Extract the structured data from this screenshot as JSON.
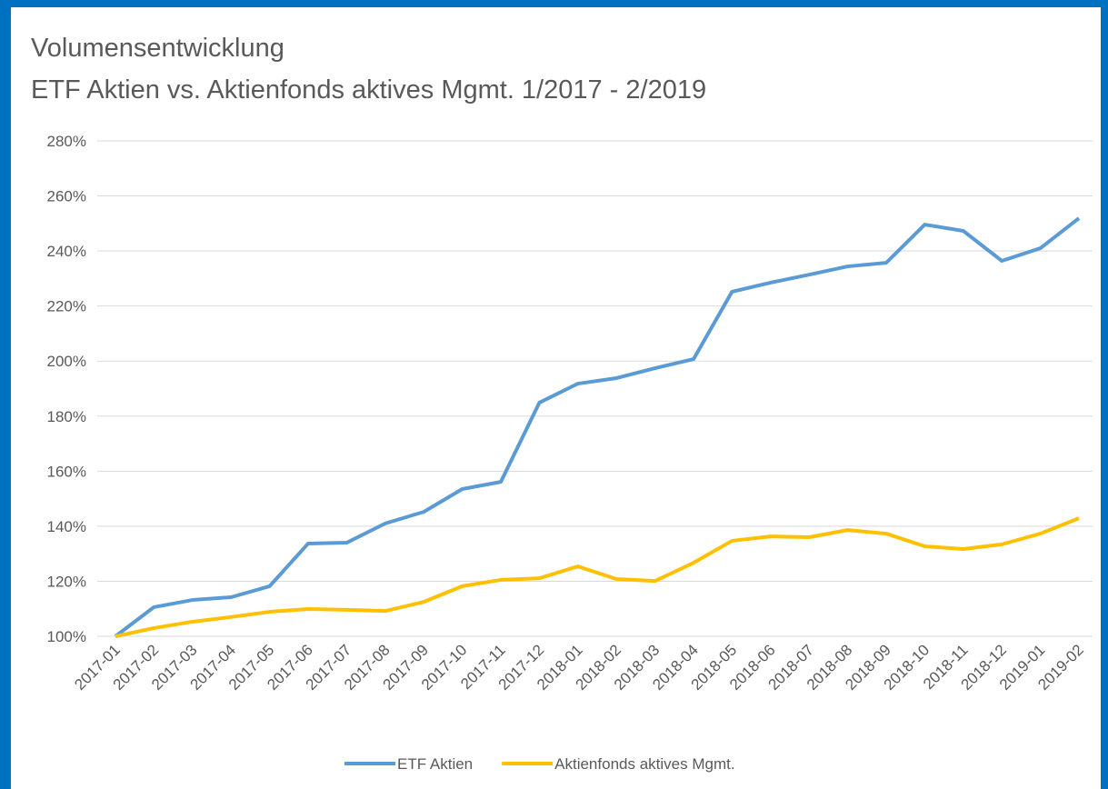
{
  "chart_data": {
    "type": "line",
    "title": "Volumensentwicklung",
    "subtitle": "ETF Aktien vs. Aktienfonds aktives Mgmt. 1/2017 - 2/2019",
    "categories": [
      "2017-01",
      "2017-02",
      "2017-03",
      "2017-04",
      "2017-05",
      "2017-06",
      "2017-07",
      "2017-08",
      "2017-09",
      "2017-10",
      "2017-11",
      "2017-12",
      "2018-01",
      "2018-02",
      "2018-03",
      "2018-04",
      "2018-05",
      "2018-06",
      "2018-07",
      "2018-08",
      "2018-09",
      "2018-10",
      "2018-11",
      "2018-12",
      "2019-01",
      "2019-02"
    ],
    "series": [
      {
        "name": "ETF Aktien",
        "color": "#5b9bd5",
        "values": [
          100,
          110.6,
          113.2,
          114.2,
          118.2,
          133.7,
          134,
          141,
          145.2,
          153.5,
          156.1,
          184.9,
          191.8,
          193.8,
          197.4,
          200.7,
          225.2,
          228.5,
          231.4,
          234.4,
          235.7,
          249.6,
          247.3,
          236.4,
          241,
          251.9
        ]
      },
      {
        "name": "Aktienfonds aktives Mgmt.",
        "color": "#ffc000",
        "values": [
          100,
          103,
          105.3,
          107,
          108.9,
          109.9,
          109.6,
          109.2,
          112.5,
          118.2,
          120.5,
          121.1,
          125.4,
          120.8,
          120.1,
          126.7,
          134.7,
          136.3,
          136,
          138.6,
          137.3,
          132.7,
          131.7,
          133.4,
          137.3,
          142.9
        ]
      }
    ],
    "ylim": [
      100,
      280
    ],
    "yticks": [
      {
        "value": 100,
        "label": "100%"
      },
      {
        "value": 120,
        "label": "120%"
      },
      {
        "value": 140,
        "label": "140%"
      },
      {
        "value": 160,
        "label": "160%"
      },
      {
        "value": 180,
        "label": "180%"
      },
      {
        "value": 200,
        "label": "200%"
      },
      {
        "value": 220,
        "label": "220%"
      },
      {
        "value": 240,
        "label": "240%"
      },
      {
        "value": 260,
        "label": "260%"
      },
      {
        "value": 280,
        "label": "280%"
      }
    ],
    "grid": true,
    "legend": "bottom"
  }
}
